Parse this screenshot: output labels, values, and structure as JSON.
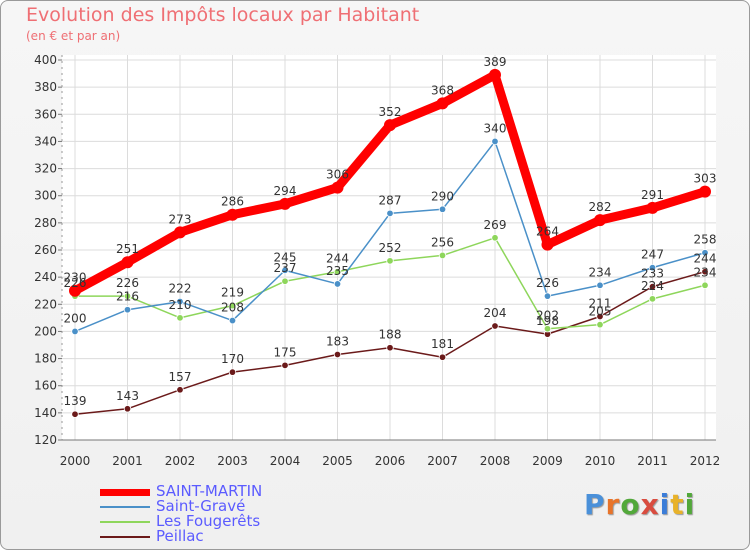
{
  "title": "Evolution des Impôts locaux par Habitant",
  "subtitle": "(en € et par an)",
  "brand": {
    "text": "Proxiti",
    "colors": [
      "#4a90d9",
      "#e8742a",
      "#52a83a",
      "#d94c3f",
      "#3b7dd8",
      "#e8b22a",
      "#52a83a"
    ]
  },
  "chart_data": {
    "type": "line",
    "x": [
      "2000",
      "2001",
      "2002",
      "2003",
      "2004",
      "2005",
      "2006",
      "2007",
      "2008",
      "2009",
      "2010",
      "2011",
      "2012"
    ],
    "ylim": [
      120,
      400
    ],
    "yticks": [
      "120",
      "140",
      "160",
      "180",
      "200",
      "220",
      "240",
      "260",
      "280",
      "300",
      "320",
      "340",
      "360",
      "380",
      "400"
    ],
    "grid": true,
    "legend": "bottom-left",
    "series": [
      {
        "name": "SAINT-MARTIN",
        "color": "#ff0000",
        "values": [
          230,
          251,
          273,
          286,
          294,
          306,
          352,
          368,
          389,
          264,
          282,
          291,
          303
        ]
      },
      {
        "name": "Saint-Gravé",
        "color": "#4a90c8",
        "values": [
          200,
          216,
          222,
          208,
          245,
          235,
          287,
          290,
          340,
          226,
          234,
          247,
          258
        ]
      },
      {
        "name": "Les Fougerêts",
        "color": "#8ed65b",
        "values": [
          226,
          226,
          210,
          219,
          237,
          244,
          252,
          256,
          269,
          202,
          205,
          224,
          234
        ]
      },
      {
        "name": "Peillac",
        "color": "#6b1a1a",
        "values": [
          139,
          143,
          157,
          170,
          175,
          183,
          188,
          181,
          204,
          198,
          211,
          233,
          244
        ]
      }
    ]
  }
}
